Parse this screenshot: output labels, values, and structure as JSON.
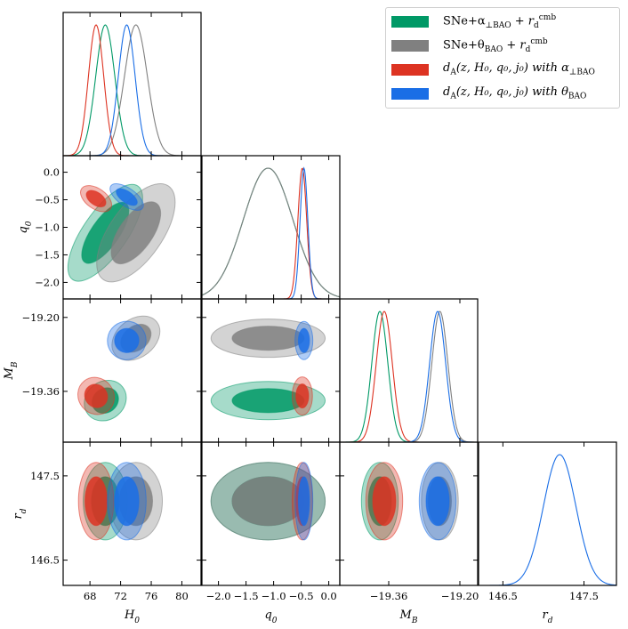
{
  "chart_data": {
    "type": "corner",
    "parameters": [
      {
        "key": "H0",
        "label": "H₀",
        "range": [
          64.5,
          82.5
        ],
        "ticks": [
          68,
          72,
          76,
          80
        ],
        "tick_labels": [
          "68",
          "72",
          "76",
          "80"
        ]
      },
      {
        "key": "q0",
        "label": "q₀",
        "range": [
          -2.3,
          0.2
        ],
        "ticks": [
          -2.0,
          -1.5,
          -1.0,
          -0.5,
          0.0
        ],
        "tick_labels": [
          "−2.0",
          "−1.5",
          "−1.0",
          "−0.5",
          "0.0"
        ]
      },
      {
        "key": "MB",
        "label": "M_B",
        "range": [
          -19.47,
          -19.16
        ],
        "ticks": [
          -19.36,
          -19.2
        ],
        "tick_labels": [
          "−19.36",
          "−19.20"
        ]
      },
      {
        "key": "rd",
        "label": "r_d",
        "range": [
          146.2,
          147.9
        ],
        "ticks": [
          146.5,
          147.5
        ],
        "tick_labels": [
          "146.5",
          "147.5"
        ]
      }
    ],
    "y_axis_ticks": {
      "q0": {
        "ticks": [
          -2.0,
          -1.5,
          -1.0,
          -0.5,
          0.0
        ],
        "tick_labels": [
          "−2.0",
          "−1.5",
          "−1.0",
          "−0.5",
          "0.0"
        ],
        "range": [
          -2.3,
          0.3
        ]
      },
      "MB": {
        "ticks": [
          -19.2,
          -19.36
        ],
        "tick_labels": [
          "−19.20",
          "−19.36"
        ],
        "range": [
          -19.47,
          -19.16
        ]
      },
      "rd": {
        "ticks": [
          147.5,
          146.5
        ],
        "tick_labels": [
          "147.5",
          "146.5"
        ],
        "range": [
          146.2,
          147.9
        ]
      }
    },
    "legend_placement": "top-right",
    "series": [
      {
        "name": "SNe+α⊥BAO + r_d^cmb",
        "color": "#009966",
        "mean": {
          "H0": 70.0,
          "q0": -1.1,
          "MB": -19.38
        },
        "sd": {
          "H0": 1.25,
          "q0": 0.45,
          "MB": 0.018
        }
      },
      {
        "name": "SNe+θBAO + r_d^cmb",
        "color": "#808080",
        "mean": {
          "H0": 74.0,
          "q0": -1.1,
          "MB": -19.245
        },
        "sd": {
          "H0": 1.5,
          "q0": 0.45,
          "MB": 0.018
        }
      },
      {
        "name": "d_A(z,H0,q0,j0) with α⊥BAO",
        "color": "#dd3322",
        "mean": {
          "H0": 68.8,
          "q0": -0.48,
          "MB": -19.37
        },
        "sd": {
          "H0": 1.0,
          "q0": 0.08,
          "MB": 0.018
        }
      },
      {
        "name": "d_A(z,H0,q0,j0) with θBAO",
        "color": "#1a6ee6",
        "mean": {
          "H0": 72.8,
          "q0": -0.45,
          "MB": -19.25
        },
        "sd": {
          "H0": 1.1,
          "q0": 0.07,
          "MB": 0.018
        }
      }
    ],
    "rd_posterior": {
      "mean": 147.2,
      "sd": 0.2,
      "color": "#1a6ee6"
    },
    "axis_labels": {
      "H0": "H",
      "H0_sub": "0",
      "q0": "q",
      "q0_sub": "0",
      "MB": "M",
      "MB_sub": "B",
      "rd": "r",
      "rd_sub": "d"
    }
  },
  "legend": [
    {
      "label": "SNe+α",
      "sub": "⊥BAO",
      "tail": " + r",
      "tail_sub": "d",
      "tail_sup": "cmb",
      "color": "#009966"
    },
    {
      "label": "SNe+θ",
      "sub": "BAO",
      "tail": " + r",
      "tail_sub": "d",
      "tail_sup": "cmb",
      "color": "#808080"
    },
    {
      "label": "d",
      "sub": "A",
      "tail": "(z, H₀, q₀, j₀) with α",
      "tail_sub": "⊥BAO",
      "tail_sup": "",
      "color": "#dd3322"
    },
    {
      "label": "d",
      "sub": "A",
      "tail": "(z, H₀, q₀, j₀) with θ",
      "tail_sub": "BAO",
      "tail_sup": "",
      "color": "#1a6ee6"
    }
  ]
}
